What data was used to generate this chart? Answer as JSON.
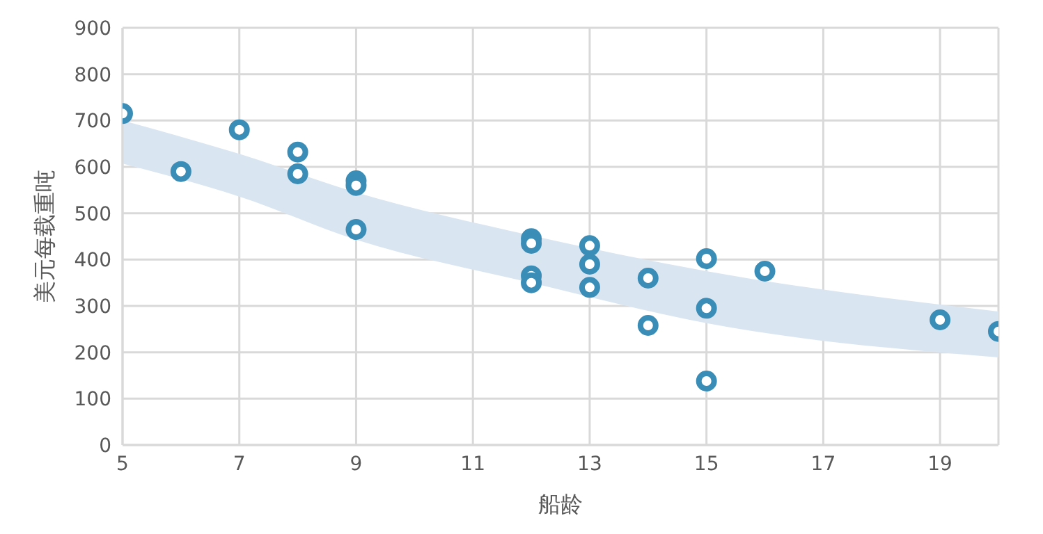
{
  "chart_data": {
    "type": "scatter",
    "xlabel": "船龄",
    "ylabel": "美元每载重吨",
    "xlim": [
      5,
      20
    ],
    "xticks": [
      5,
      7,
      9,
      11,
      13,
      15,
      17,
      19
    ],
    "ylim": [
      0,
      900
    ],
    "yticks": [
      0,
      100,
      200,
      300,
      400,
      500,
      600,
      700,
      800,
      900
    ],
    "grid": true,
    "legend": false,
    "marker": "circle",
    "series": [
      {
        "type": "area",
        "color": "#dae5f2",
        "x": [
          5,
          7,
          9,
          12,
          15,
          20
        ],
        "values": [
          null,
          null,
          null,
          null,
          null,
          null
        ],
        "lower": [
          607,
          536,
          443,
          350,
          263,
          189
        ],
        "upper": [
          700,
          628,
          545,
          452,
          375,
          288
        ]
      },
      {
        "type": "scatter",
        "color": "#3a8db6",
        "x": [
          5,
          6,
          7,
          8,
          8,
          9,
          9,
          9,
          12,
          12,
          12,
          12,
          13,
          13,
          13,
          14,
          14,
          15,
          15,
          15,
          16,
          19,
          20
        ],
        "values": [
          715,
          590,
          680,
          632,
          585,
          570,
          560,
          465,
          445,
          435,
          365,
          350,
          430,
          390,
          340,
          360,
          258,
          402,
          295,
          138,
          375,
          270,
          245
        ]
      }
    ]
  }
}
